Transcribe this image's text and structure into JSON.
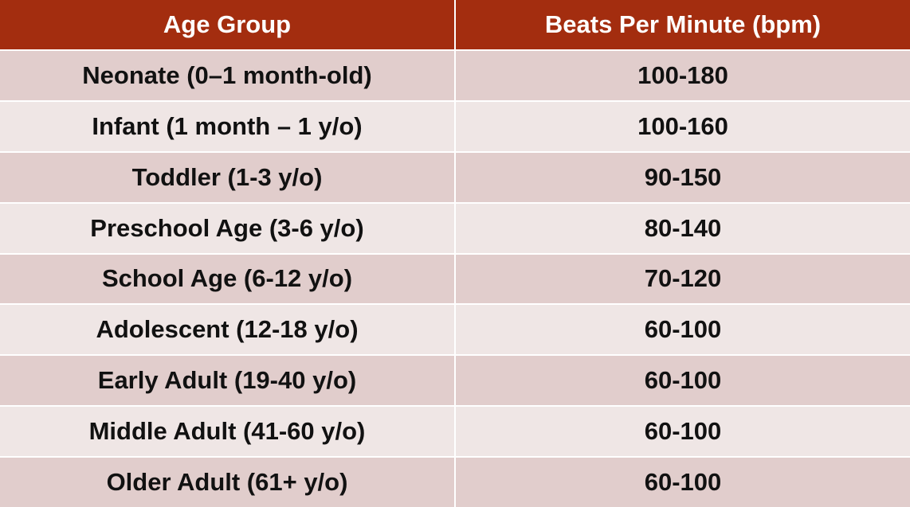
{
  "table": {
    "header": [
      "Age Group",
      "Beats Per Minute (bpm)"
    ],
    "rows": [
      [
        "Neonate (0–1 month-old)",
        "100-180"
      ],
      [
        "Infant (1 month – 1 y/o)",
        "100-160"
      ],
      [
        "Toddler (1-3 y/o)",
        "90-150"
      ],
      [
        "Preschool Age (3-6 y/o)",
        "80-140"
      ],
      [
        "School Age (6-12 y/o)",
        "70-120"
      ],
      [
        "Adolescent (12-18 y/o)",
        "60-100"
      ],
      [
        "Early Adult (19-40 y/o)",
        "60-100"
      ],
      [
        "Middle Adult (41-60 y/o)",
        "60-100"
      ],
      [
        "Older Adult (61+ y/o)",
        "60-100"
      ]
    ]
  }
}
